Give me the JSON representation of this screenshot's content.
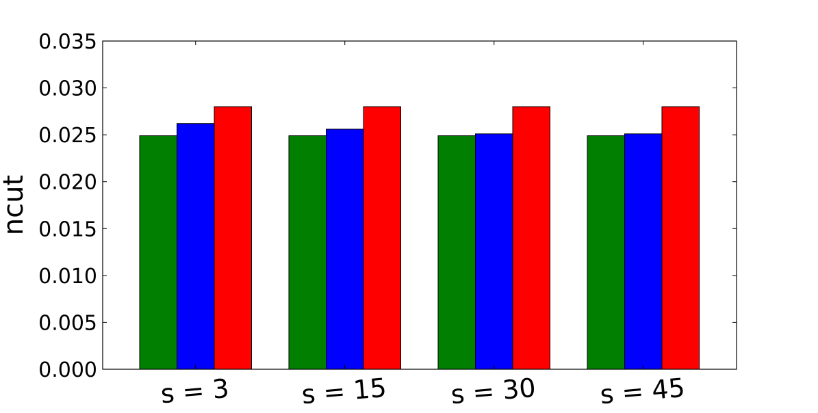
{
  "chart_data": {
    "type": "bar",
    "title": "",
    "xlabel": "",
    "ylabel": "ncut",
    "categories": [
      "s = 3",
      "s = 15",
      "s = 30",
      "s = 45"
    ],
    "series": [
      {
        "color": "#007f00",
        "values": [
          0.0249,
          0.0249,
          0.0249,
          0.0249
        ]
      },
      {
        "color": "#0000ff",
        "values": [
          0.0262,
          0.0256,
          0.0251,
          0.0251
        ]
      },
      {
        "color": "#ff0000",
        "values": [
          0.028,
          0.028,
          0.028,
          0.028
        ]
      }
    ],
    "ylim": [
      0,
      0.035
    ],
    "yticks": [
      "0.000",
      "0.005",
      "0.010",
      "0.015",
      "0.020",
      "0.025",
      "0.030",
      "0.035"
    ],
    "grid": false,
    "legend": "none"
  }
}
